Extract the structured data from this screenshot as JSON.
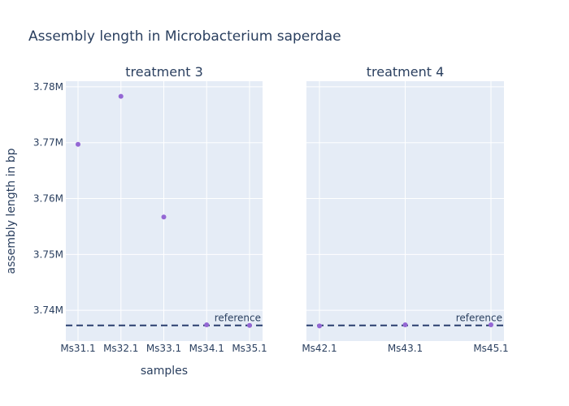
{
  "chart_data": {
    "type": "scatter",
    "title": "Assembly length in Microbacterium saperdae",
    "xlabel": "samples",
    "ylabel": "assembly length in bp",
    "ylim": [
      3734500,
      3781000
    ],
    "yticks": [
      3740000,
      3750000,
      3760000,
      3770000,
      3780000
    ],
    "ytick_labels": [
      "3.74M",
      "3.75M",
      "3.76M",
      "3.77M",
      "3.78M"
    ],
    "reference": {
      "label": "reference",
      "value": 3737300
    },
    "colors": {
      "point": "#9467d4",
      "reference_line": "#2a3f6f",
      "panel_bg": "#e5ecf6",
      "grid": "#ffffff",
      "text": "#2a3f5f"
    },
    "grid": true,
    "panels": [
      {
        "title": "treatment 3",
        "categories": [
          "Ms31.1",
          "Ms32.1",
          "Ms33.1",
          "Ms34.1",
          "Ms35.1"
        ],
        "values": [
          3769700,
          3778300,
          3756700,
          3737400,
          3737300
        ]
      },
      {
        "title": "treatment 4",
        "categories": [
          "Ms42.1",
          "Ms43.1",
          "Ms45.1"
        ],
        "values": [
          3737200,
          3737400,
          3737400
        ]
      }
    ]
  }
}
